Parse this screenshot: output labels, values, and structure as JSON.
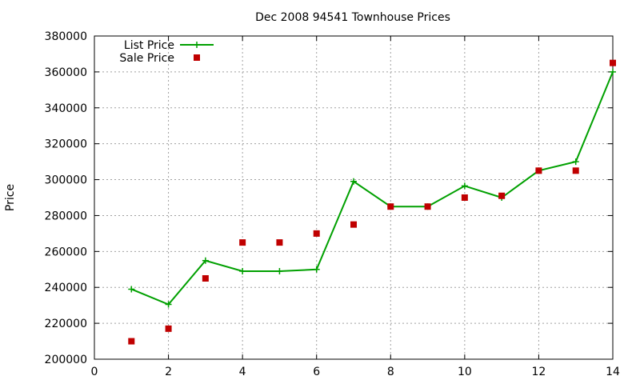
{
  "chart_data": {
    "type": "line",
    "title": "Dec 2008 94541 Townhouse Prices",
    "xlabel": "",
    "ylabel": "Price",
    "xlim": [
      0,
      14
    ],
    "ylim": [
      200000,
      380000
    ],
    "x_ticks": [
      0,
      2,
      4,
      6,
      8,
      10,
      12,
      14
    ],
    "y_ticks": [
      200000,
      220000,
      240000,
      260000,
      280000,
      300000,
      320000,
      340000,
      360000,
      380000
    ],
    "grid": true,
    "legend_position": "top-left",
    "series": [
      {
        "name": "List Price",
        "style": "line-with-plus-markers",
        "color": "#00a000",
        "x": [
          1,
          2,
          3,
          4,
          5,
          6,
          7,
          8,
          9,
          10,
          11,
          12,
          13,
          14
        ],
        "y": [
          239000,
          230500,
          254900,
          249000,
          249000,
          250000,
          299000,
          285000,
          285000,
          296500,
          290000,
          305000,
          310000,
          360000
        ]
      },
      {
        "name": "Sale Price",
        "style": "square-points",
        "color": "#c00000",
        "x": [
          1,
          2,
          3,
          4,
          5,
          6,
          7,
          8,
          9,
          10,
          11,
          12,
          13,
          14
        ],
        "y": [
          210000,
          217000,
          245000,
          265000,
          265000,
          270000,
          275000,
          285000,
          285000,
          290000,
          291000,
          305000,
          305000,
          365000
        ]
      }
    ]
  }
}
